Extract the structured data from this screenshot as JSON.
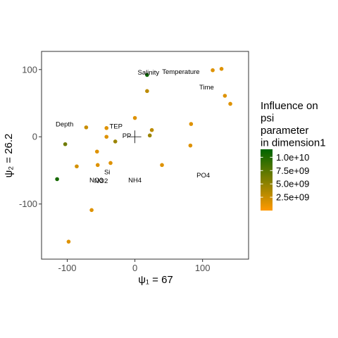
{
  "chart_data": {
    "type": "scatter",
    "xlabel": "ψ₁ = 67",
    "ylabel": "ψ₂ = 26.2",
    "xlim": [
      -138,
      168
    ],
    "ylim": [
      -182,
      127
    ],
    "x_ticks": [
      -100,
      0,
      100
    ],
    "y_ticks": [
      -100,
      0,
      100
    ],
    "x_tick_labels": [
      "-100",
      "0",
      "100"
    ],
    "y_tick_labels": [
      "-100",
      "0",
      "100"
    ],
    "grid": false,
    "points": [
      {
        "x": 18,
        "y": 92,
        "value": 11000000000
      },
      {
        "x": 115,
        "y": 99,
        "value": 1500000000
      },
      {
        "x": 128,
        "y": 101,
        "value": 1500000000
      },
      {
        "x": 18,
        "y": 68,
        "value": 3000000000
      },
      {
        "x": 133,
        "y": 61,
        "value": 1500000000
      },
      {
        "x": 141,
        "y": 49,
        "value": 1500000000
      },
      {
        "x": 0,
        "y": 28,
        "value": 1500000000
      },
      {
        "x": 83,
        "y": 19,
        "value": 1500000000
      },
      {
        "x": -72,
        "y": 14,
        "value": 2500000000
      },
      {
        "x": -42,
        "y": 13,
        "value": 1500000000
      },
      {
        "x": 25,
        "y": 10,
        "value": 3000000000
      },
      {
        "x": 22,
        "y": 2,
        "value": 4500000000
      },
      {
        "x": -42,
        "y": 0,
        "value": 1500000000
      },
      {
        "x": -29,
        "y": -7,
        "value": 4500000000
      },
      {
        "x": -103,
        "y": -11,
        "value": 6500000000
      },
      {
        "x": 82,
        "y": -13,
        "value": 1500000000
      },
      {
        "x": -56,
        "y": -22,
        "value": 1500000000
      },
      {
        "x": -36,
        "y": -39,
        "value": 1500000000
      },
      {
        "x": 40,
        "y": -42,
        "value": 1500000000
      },
      {
        "x": -55,
        "y": -42,
        "value": 1500000000
      },
      {
        "x": -86,
        "y": -44,
        "value": 2000000000
      },
      {
        "x": -115,
        "y": -63,
        "value": 10500000000
      },
      {
        "x": -64,
        "y": -109,
        "value": 1500000000
      },
      {
        "x": -98,
        "y": -156,
        "value": 1500000000
      }
    ],
    "variables": [
      {
        "label": "Salinity",
        "x": 20,
        "y": 96,
        "anchor": "middle"
      },
      {
        "label": "Temperature",
        "x": 68,
        "y": 97,
        "anchor": "middle"
      },
      {
        "label": "Time",
        "x": 106,
        "y": 74,
        "anchor": "middle"
      },
      {
        "label": "Depth",
        "x": -104,
        "y": 19,
        "anchor": "middle"
      },
      {
        "label": "TEP",
        "x": -28,
        "y": 16,
        "anchor": "middle"
      },
      {
        "label": "PP",
        "x": -12,
        "y": 2,
        "anchor": "middle"
      },
      {
        "label": "Si",
        "x": -41,
        "y": -52,
        "anchor": "middle"
      },
      {
        "label": "NO3",
        "x": -57,
        "y": -64,
        "anchor": "middle"
      },
      {
        "label": "NO2",
        "x": -50,
        "y": -65,
        "anchor": "middle"
      },
      {
        "label": "NH4",
        "x": 0,
        "y": -64,
        "anchor": "middle"
      },
      {
        "label": "PO4",
        "x": 101,
        "y": -57,
        "anchor": "middle"
      }
    ],
    "center_marker": {
      "x": 0,
      "y": 0
    },
    "legend": {
      "title_lines": [
        "Influence on",
        "psi",
        "parameter",
        "in dimension1"
      ],
      "placement": "right",
      "min": 0,
      "max": 11500000000,
      "ticks": [
        10000000000,
        7500000000,
        5000000000,
        2500000000
      ],
      "tick_labels": [
        "1.0e+10",
        "7.5e+09",
        "5.0e+09",
        "2.5e+09"
      ],
      "color_low": "#ff9900",
      "color_high": "#006400"
    }
  }
}
